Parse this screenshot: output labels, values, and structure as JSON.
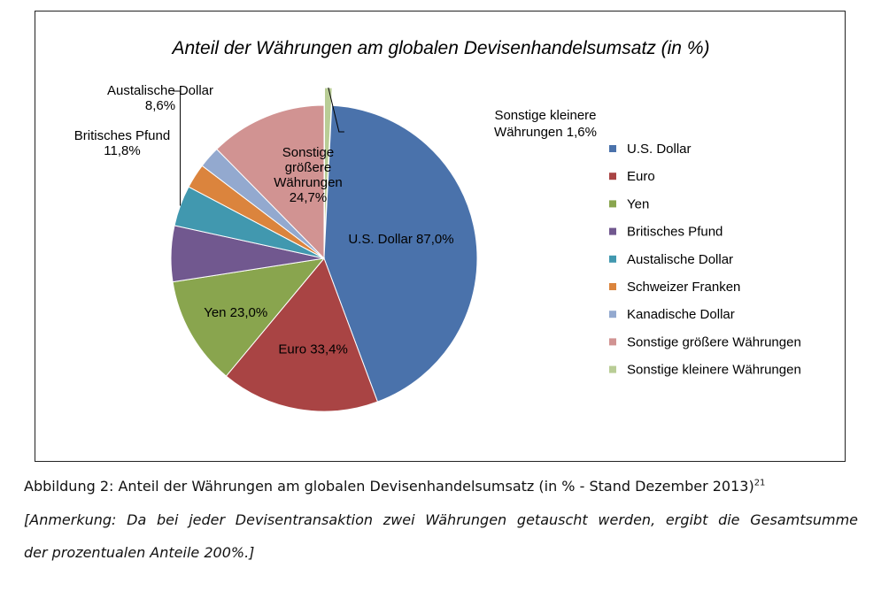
{
  "chart_data": {
    "type": "pie",
    "title": "Anteil der Währungen am globalen Devisenhandelsumsatz (in %)",
    "legend_position": "right",
    "slices": [
      {
        "name": "U.S. Dollar",
        "value": 87.0,
        "label": "U.S. Dollar 87,0%",
        "color": "#4A72AB"
      },
      {
        "name": "Euro",
        "value": 33.4,
        "label": "Euro 33,4%",
        "color": "#A94444"
      },
      {
        "name": "Yen",
        "value": 23.0,
        "label": "Yen 23,0%",
        "color": "#89A54E"
      },
      {
        "name": "Britisches Pfund",
        "value": 11.8,
        "label_lines": [
          "Britisches Pfund",
          "11,8%"
        ],
        "color": "#71588F"
      },
      {
        "name": "Austalische Dollar",
        "value": 8.6,
        "label_lines": [
          "Austalische Dollar",
          "8,6%"
        ],
        "color": "#4198AF"
      },
      {
        "name": "Schweizer Franken",
        "value": 5.2,
        "color": "#DB843D"
      },
      {
        "name": "Kanadische Dollar",
        "value": 4.6,
        "color": "#93A9CF"
      },
      {
        "name": "Sonstige größere Währungen",
        "value": 24.7,
        "label_lines": [
          "Sonstige",
          "größere",
          "Währungen",
          "24,7%"
        ],
        "color": "#D19392"
      },
      {
        "name": "Sonstige kleinere Währungen",
        "value": 1.6,
        "label_lines": [
          "Sonstige kleinere",
          "Währungen 1,6%"
        ],
        "color": "#B9CD96"
      }
    ]
  },
  "caption": {
    "main": "Abbildung 2: Anteil der Währungen am globalen Devisenhandelsumsatz (in % - Stand Dezember 2013)",
    "footnote_ref": "21",
    "note_line1": "[Anmerkung: Da bei jeder Devisentransaktion zwei Währungen getauscht werden, ergibt die Gesamtsumme",
    "note_line2": "der prozentualen Anteile 200%.]"
  }
}
